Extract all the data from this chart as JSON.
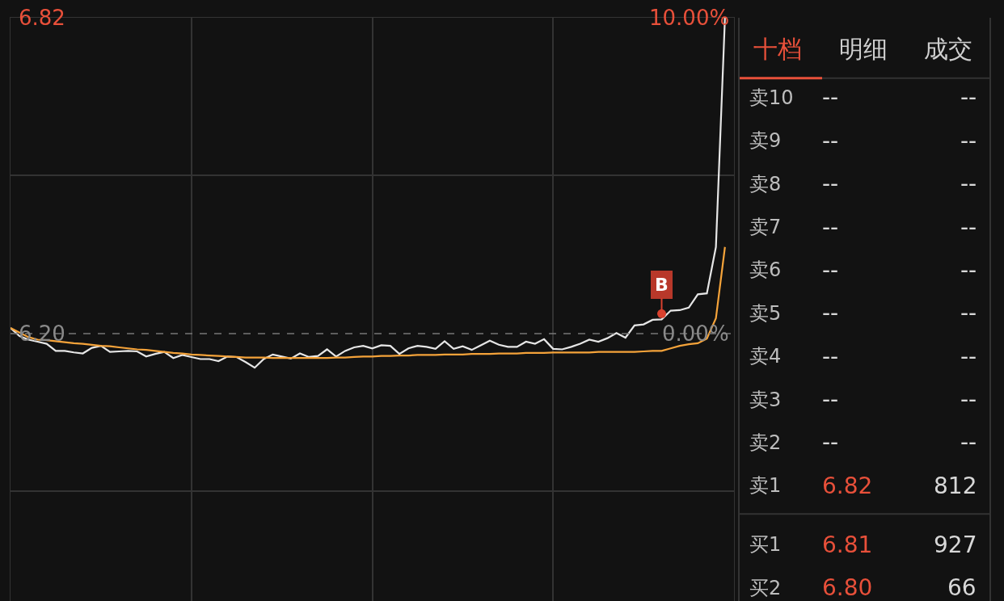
{
  "chart_data": [
    {
      "type": "line",
      "categories": [
        null,
        null,
        null,
        null,
        null,
        null,
        null,
        null,
        null,
        null,
        null,
        null,
        null,
        null,
        null,
        null,
        null,
        null,
        null,
        null,
        null,
        null,
        null,
        null,
        null,
        null,
        null,
        null,
        null,
        null,
        null,
        null,
        null,
        null,
        null,
        null,
        null,
        null,
        null,
        null,
        null,
        null,
        null,
        null,
        null,
        null,
        null,
        null,
        null,
        null,
        null,
        null,
        null,
        null,
        null,
        null,
        null,
        null,
        null,
        null,
        null,
        null,
        null,
        null,
        null,
        null,
        null,
        null,
        null,
        null,
        null,
        null,
        null,
        null,
        null,
        null,
        null,
        null,
        null,
        null,
        null
      ],
      "series": [
        {
          "color": "#e6e6e6",
          "values": [
            6.211,
            6.195,
            6.188,
            6.184,
            6.18,
            6.166,
            6.166,
            6.163,
            6.161,
            6.172,
            6.176,
            6.164,
            6.165,
            6.166,
            6.165,
            6.155,
            6.16,
            6.164,
            6.152,
            6.158,
            6.154,
            6.15,
            6.15,
            6.146,
            6.155,
            6.154,
            6.144,
            6.133,
            6.15,
            6.159,
            6.155,
            6.151,
            6.161,
            6.154,
            6.156,
            6.169,
            6.155,
            6.166,
            6.173,
            6.176,
            6.171,
            6.177,
            6.176,
            6.16,
            6.171,
            6.176,
            6.174,
            6.17,
            6.185,
            6.17,
            6.175,
            6.168,
            6.177,
            6.186,
            6.178,
            6.174,
            6.174,
            6.184,
            6.18,
            6.189,
            6.17,
            6.169,
            6.174,
            6.18,
            6.188,
            6.184,
            6.191,
            6.201,
            6.192,
            6.216,
            6.218,
            6.227,
            6.228,
            6.245,
            6.246,
            6.251,
            6.277,
            6.279,
            6.37,
            6.82,
            null
          ]
        },
        {
          "color": "#f5a33a",
          "values": [
            6.211,
            6.202,
            6.193,
            6.188,
            6.187,
            6.185,
            6.183,
            6.181,
            6.18,
            6.178,
            6.176,
            6.175,
            6.173,
            6.171,
            6.169,
            6.168,
            6.166,
            6.164,
            6.162,
            6.161,
            6.159,
            6.158,
            6.157,
            6.156,
            6.155,
            6.154,
            6.153,
            6.153,
            6.153,
            6.152,
            6.152,
            6.152,
            6.152,
            6.152,
            6.152,
            6.152,
            6.153,
            6.153,
            6.154,
            6.155,
            6.155,
            6.156,
            6.156,
            6.157,
            6.157,
            6.158,
            6.158,
            6.158,
            6.159,
            6.159,
            6.159,
            6.16,
            6.16,
            6.16,
            6.161,
            6.161,
            6.161,
            6.162,
            6.162,
            6.162,
            6.163,
            6.163,
            6.163,
            6.163,
            6.163,
            6.164,
            6.164,
            6.164,
            6.164,
            6.164,
            6.165,
            6.166,
            6.166,
            6.171,
            6.176,
            6.179,
            6.181,
            6.19,
            6.23,
            6.37,
            null
          ]
        },
        {
          "type": "scatter",
          "marker": "circle",
          "color": "#d9412e",
          "values": [
            null,
            null,
            null,
            null,
            null,
            null,
            null,
            null,
            null,
            null,
            null,
            null,
            null,
            null,
            null,
            null,
            null,
            null,
            null,
            null,
            null,
            null,
            null,
            null,
            null,
            null,
            null,
            null,
            null,
            null,
            null,
            null,
            null,
            null,
            null,
            null,
            null,
            null,
            null,
            null,
            null,
            null,
            null,
            null,
            null,
            null,
            null,
            null,
            null,
            null,
            null,
            null,
            null,
            null,
            null,
            null,
            null,
            null,
            null,
            null,
            null,
            null,
            null,
            null,
            null,
            null,
            null,
            null,
            null,
            null,
            null,
            null,
            6.239,
            null,
            null,
            null,
            null,
            null,
            null,
            null,
            null
          ],
          "value_labels": [
            null,
            null,
            null,
            null,
            null,
            null,
            null,
            null,
            null,
            null,
            null,
            null,
            null,
            null,
            null,
            null,
            null,
            null,
            null,
            null,
            null,
            null,
            null,
            null,
            null,
            null,
            null,
            null,
            null,
            null,
            null,
            null,
            null,
            null,
            null,
            null,
            null,
            null,
            null,
            null,
            null,
            null,
            null,
            null,
            null,
            null,
            null,
            null,
            null,
            null,
            null,
            null,
            null,
            null,
            null,
            null,
            null,
            null,
            null,
            null,
            null,
            null,
            null,
            null,
            null,
            null,
            null,
            null,
            null,
            null,
            null,
            null,
            "B",
            null,
            null,
            null,
            null,
            null,
            null,
            null,
            null
          ]
        }
      ],
      "ylim": [
        5.675,
        6.82
      ],
      "yticks": [
        {
          "value": 6.82,
          "label": "6.82"
        },
        {
          "value": 6.51,
          "label": null
        },
        {
          "value": 6.2,
          "label": "6.20"
        },
        {
          "value": 5.89,
          "label": null
        }
      ],
      "y2lim": [
        -8.47,
        10
      ],
      "y2ticks": [
        {
          "value": 10,
          "label": "10.00%"
        },
        {
          "value": 0,
          "label": "0.00%"
        }
      ],
      "ref_lines": [
        {
          "axis": "y",
          "value": 6.2,
          "color": "#777777",
          "line_style": "dashed"
        }
      ],
      "grid": true,
      "tick_labels": "y",
      "marker": "none",
      "line_style": "solid"
    },
    {
      "type": "other",
      "annotations": [
        "十档",
        "明细",
        "成交",
        "卖10",
        "--",
        "--",
        "卖9",
        "--",
        "--",
        "卖8",
        "--",
        "--",
        "卖7",
        "--",
        "--",
        "卖6",
        "--",
        "--",
        "卖5",
        "--",
        "--",
        "卖4",
        "--",
        "--",
        "卖3",
        "--",
        "--",
        "卖2",
        "--",
        "--",
        "卖1",
        "6.82",
        "812",
        "买1",
        "6.81",
        "927",
        "买2",
        "6.80",
        "66"
      ]
    }
  ]
}
